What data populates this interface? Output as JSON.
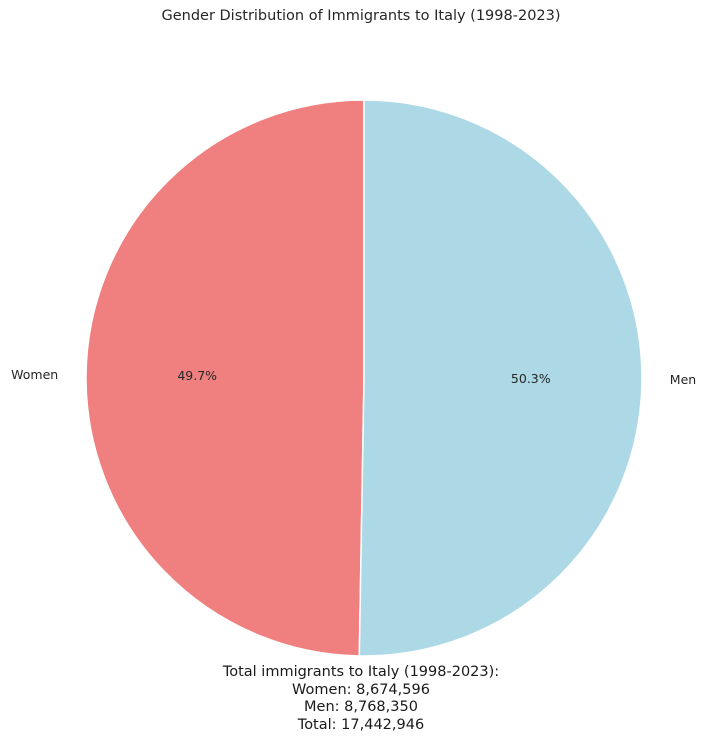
{
  "chart_data": {
    "type": "pie",
    "title": "Gender Distribution of Immigrants to Italy (1998-2023)",
    "slices": [
      {
        "label": "Women",
        "value": 8674596,
        "pct_label": "49.7%",
        "color": "#f08080"
      },
      {
        "label": "Men",
        "value": 8768350,
        "pct_label": "50.3%",
        "color": "#add8e6"
      }
    ],
    "start_angle_deg": 90,
    "direction": "counterclockwise"
  },
  "summary": {
    "heading": "Total immigrants to Italy (1998-2023):",
    "women": "Women: 8,674,596",
    "men": "Men: 8,768,350",
    "total": "Total: 17,442,946"
  }
}
